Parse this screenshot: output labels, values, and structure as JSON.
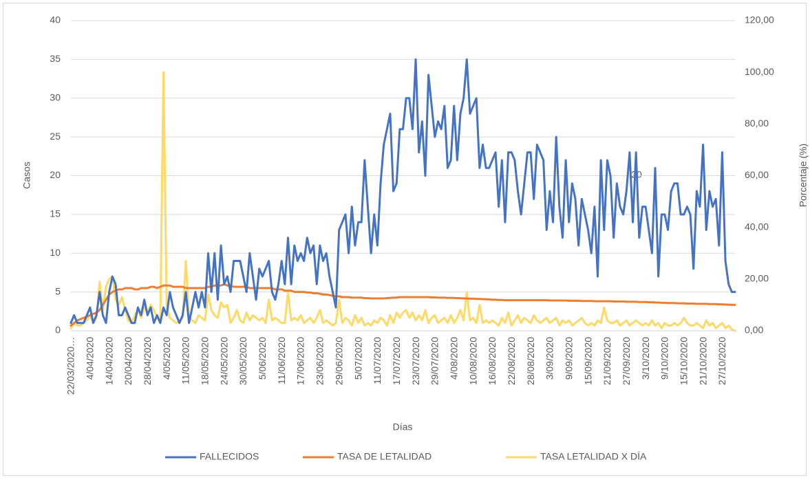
{
  "chart_data": {
    "type": "line",
    "x_label": "Días",
    "y_label": "Casos",
    "y2_label": "Porcentaje (%)",
    "annotations": [
      "20"
    ],
    "categories": [
      "22/03/2020…",
      null,
      null,
      null,
      null,
      null,
      "4/04/2020",
      null,
      null,
      null,
      null,
      null,
      "14/04/2020",
      null,
      null,
      null,
      null,
      null,
      "20/04/2020",
      null,
      null,
      null,
      null,
      null,
      "28/04/2020",
      null,
      null,
      null,
      null,
      null,
      "4/05/2020",
      null,
      null,
      null,
      null,
      null,
      "11/05/2020",
      null,
      null,
      null,
      null,
      null,
      "18/05/2020",
      null,
      null,
      null,
      null,
      null,
      "24/05/2020",
      null,
      null,
      null,
      null,
      null,
      "30/05/2020",
      null,
      null,
      null,
      null,
      null,
      "5/06/2020",
      null,
      null,
      null,
      null,
      null,
      "11/06/2020",
      null,
      null,
      null,
      null,
      null,
      "17/06/2020",
      null,
      null,
      null,
      null,
      null,
      "23/06/2020",
      null,
      null,
      null,
      null,
      null,
      "29/06/2020",
      null,
      null,
      null,
      null,
      null,
      "5/07/2020",
      null,
      null,
      null,
      null,
      null,
      "11/07/2020",
      null,
      null,
      null,
      null,
      null,
      "17/07/2020",
      null,
      null,
      null,
      null,
      null,
      "23/07/2020",
      null,
      null,
      null,
      null,
      null,
      "29/07/2020",
      null,
      null,
      null,
      null,
      null,
      "4/08/2020",
      null,
      null,
      null,
      null,
      null,
      "10/08/2020",
      null,
      null,
      null,
      null,
      null,
      "16/08/2020",
      null,
      null,
      null,
      null,
      null,
      "22/08/2020",
      null,
      null,
      null,
      null,
      null,
      "28/08/2020",
      null,
      null,
      null,
      null,
      null,
      "3/09/2020",
      null,
      null,
      null,
      null,
      null,
      "9/09/2020",
      null,
      null,
      null,
      null,
      null,
      "15/09/2020",
      null,
      null,
      null,
      null,
      null,
      "21/09/2020",
      null,
      null,
      null,
      null,
      null,
      "27/09/2020",
      null,
      null,
      null,
      null,
      null,
      "3/10/2020",
      null,
      null,
      null,
      null,
      null,
      "9/10/2020",
      null,
      null,
      null,
      null,
      null,
      "15/10/2020",
      null,
      null,
      null,
      null,
      null,
      "21/10/2020",
      null,
      null,
      null,
      null,
      null,
      "27/10/2020",
      null,
      null,
      null,
      null
    ],
    "ylim": [
      0,
      40
    ],
    "yticks": [
      0,
      5,
      10,
      15,
      20,
      25,
      30,
      35,
      40
    ],
    "y2lim": [
      0,
      120
    ],
    "y2ticks": [
      {
        "value": 0,
        "label": "0,00"
      },
      {
        "value": 20,
        "label": "20,00"
      },
      {
        "value": 40,
        "label": "40,00"
      },
      {
        "value": 60,
        "label": "60,00"
      },
      {
        "value": 80,
        "label": "80,00"
      },
      {
        "value": 100,
        "label": "100,00"
      },
      {
        "value": 120,
        "label": "120,00"
      }
    ],
    "grid": true,
    "legend": "bottom",
    "series": [
      {
        "name": "FALLECIDOS",
        "color": "#4472c4",
        "values": [
          1,
          2,
          1,
          1,
          1,
          2,
          3,
          1,
          2,
          5,
          2,
          1,
          5,
          7,
          6,
          2,
          2,
          3,
          2,
          1,
          1,
          3,
          2,
          4,
          2,
          3,
          1,
          2,
          1,
          3,
          2,
          5,
          3,
          2,
          1,
          2,
          5,
          1,
          3,
          5,
          3,
          5,
          3,
          10,
          5,
          10,
          4,
          11,
          6,
          7,
          5,
          9,
          9,
          9,
          7,
          5,
          10,
          7,
          4,
          8,
          7,
          8,
          9,
          5,
          4,
          6,
          9,
          6,
          12,
          6,
          11,
          9,
          10,
          9,
          12,
          10,
          11,
          6,
          11,
          9,
          10,
          7,
          5,
          3,
          13,
          14,
          15,
          10,
          16,
          11,
          14,
          14,
          22,
          16,
          10,
          15,
          11,
          19,
          24,
          26,
          28,
          18,
          19,
          26,
          26,
          30,
          30,
          26,
          35,
          23,
          27,
          20,
          33,
          29,
          25,
          27,
          26,
          29,
          21,
          22,
          29,
          22,
          28,
          30,
          35,
          28,
          29,
          30,
          21,
          24,
          21,
          21,
          22,
          23,
          16,
          22,
          14,
          23,
          23,
          22,
          18,
          15,
          19,
          23,
          23,
          17,
          24,
          23,
          22,
          13,
          18,
          14,
          25,
          16,
          12,
          22,
          14,
          19,
          17,
          11,
          17,
          15,
          13,
          10,
          16,
          7,
          22,
          13,
          22,
          20,
          12,
          19,
          16,
          15,
          18,
          23,
          14,
          23,
          12,
          16,
          16,
          13,
          10,
          21,
          7,
          15,
          15,
          13,
          18,
          19,
          19,
          15,
          15,
          16,
          15,
          8,
          18,
          16,
          24,
          13,
          18,
          16,
          17,
          11,
          23,
          9,
          6,
          5,
          5
        ]
      },
      {
        "name": "TASA DE LETALIDAD",
        "color": "#ed7d31",
        "axis": "y2",
        "values": [
          2,
          3,
          4,
          4.5,
          5,
          5.5,
          6,
          6.5,
          7,
          8,
          10,
          12,
          14,
          15,
          15.5,
          16,
          16,
          16.5,
          16.5,
          16.5,
          16,
          16,
          16.5,
          16.5,
          16.5,
          17,
          17,
          16.5,
          17,
          17.5,
          17.5,
          17.5,
          17,
          17,
          17,
          17,
          16.5,
          16.5,
          16.5,
          16.5,
          16.5,
          16.5,
          16.5,
          17,
          17,
          17.5,
          17.5,
          17.5,
          18,
          17.5,
          17.5,
          17,
          17,
          17,
          17,
          17,
          16.5,
          16.5,
          16.5,
          16.5,
          16.5,
          16.5,
          16.5,
          16.5,
          16,
          16,
          16,
          15.5,
          15.5,
          15.5,
          15,
          15,
          15,
          15,
          14.8,
          14.8,
          14.5,
          14.5,
          14.3,
          14,
          14,
          13.8,
          13.5,
          13.3,
          13.3,
          13,
          13,
          13,
          12.8,
          12.8,
          12.8,
          12.8,
          12.6,
          12.6,
          12.5,
          12.5,
          12.5,
          12.5,
          12.5,
          12.6,
          12.7,
          12.8,
          12.8,
          13,
          13,
          13,
          13,
          13,
          13,
          13,
          13,
          13,
          13,
          12.9,
          12.9,
          12.8,
          12.8,
          12.8,
          12.7,
          12.7,
          12.7,
          12.6,
          12.6,
          12.5,
          12.5,
          12.4,
          12.4,
          12.3,
          12.3,
          12.2,
          12.2,
          12.1,
          12,
          12,
          11.9,
          11.9,
          11.8,
          11.8,
          11.8,
          11.8,
          11.8,
          11.8,
          11.8,
          11.8,
          11.8,
          11.8,
          11.8,
          11.8,
          11.8,
          11.8,
          11.7,
          11.7,
          11.7,
          11.7,
          11.7,
          11.7,
          11.6,
          11.6,
          11.6,
          11.6,
          11.5,
          11.5,
          11.5,
          11.5,
          11.4,
          11.4,
          11.4,
          11.4,
          11.4,
          11.4,
          11.3,
          11.3,
          11.3,
          11.3,
          11.2,
          11.2,
          11.2,
          11.2,
          11.1,
          11.1,
          11.1,
          11,
          11,
          10.9,
          10.9,
          10.8,
          10.8,
          10.7,
          10.7,
          10.7,
          10.6,
          10.6,
          10.6,
          10.5,
          10.5,
          10.5,
          10.4,
          10.4,
          10.4,
          10.4,
          10.3,
          10.3,
          10.3,
          10.2,
          10.2,
          10.1,
          10.1,
          10,
          10
        ]
      },
      {
        "name": "TASA LETALIDAD X DÍA",
        "color": "#ffd966",
        "axis": "y2",
        "values": [
          1,
          3,
          2,
          2,
          3,
          4,
          6,
          3,
          5,
          19,
          8,
          17,
          20,
          21,
          12,
          10,
          13,
          8,
          4,
          3,
          6,
          8,
          5,
          9,
          7,
          10,
          8,
          5,
          3,
          100,
          10,
          5,
          4,
          3,
          4,
          5,
          27,
          5,
          4,
          3,
          6,
          5,
          4,
          14,
          8,
          6,
          5,
          11,
          9,
          10,
          3,
          5,
          8,
          4,
          3,
          7,
          4,
          6,
          5,
          4,
          5,
          3,
          12,
          4,
          5,
          4,
          3,
          3,
          15,
          4,
          5,
          4,
          6,
          3,
          4,
          5,
          3,
          5,
          8,
          3,
          4,
          3,
          2,
          3,
          12,
          3,
          5,
          4,
          2,
          6,
          3,
          5,
          2,
          3,
          2,
          4,
          3,
          5,
          4,
          2,
          6,
          3,
          7,
          5,
          7,
          8,
          5,
          7,
          4,
          6,
          4,
          8,
          3,
          5,
          6,
          3,
          4,
          5,
          3,
          6,
          3,
          5,
          8,
          4,
          15,
          4,
          5,
          3,
          10,
          3,
          4,
          3,
          4,
          3,
          2,
          5,
          3,
          7,
          2,
          4,
          6,
          3,
          5,
          4,
          3,
          6,
          4,
          3,
          4,
          5,
          3,
          4,
          5,
          2,
          4,
          3,
          4,
          2,
          3,
          4,
          5,
          3,
          2,
          3,
          2,
          4,
          3,
          9,
          4,
          3,
          3,
          4,
          2,
          3,
          4,
          2,
          3,
          4,
          3,
          2,
          3,
          2,
          4,
          2,
          3,
          1,
          3,
          2,
          2,
          3,
          2,
          3,
          5,
          3,
          2,
          2,
          3,
          2,
          1,
          4,
          2,
          3,
          1,
          2,
          3,
          1,
          2,
          0.5,
          0
        ]
      }
    ]
  }
}
